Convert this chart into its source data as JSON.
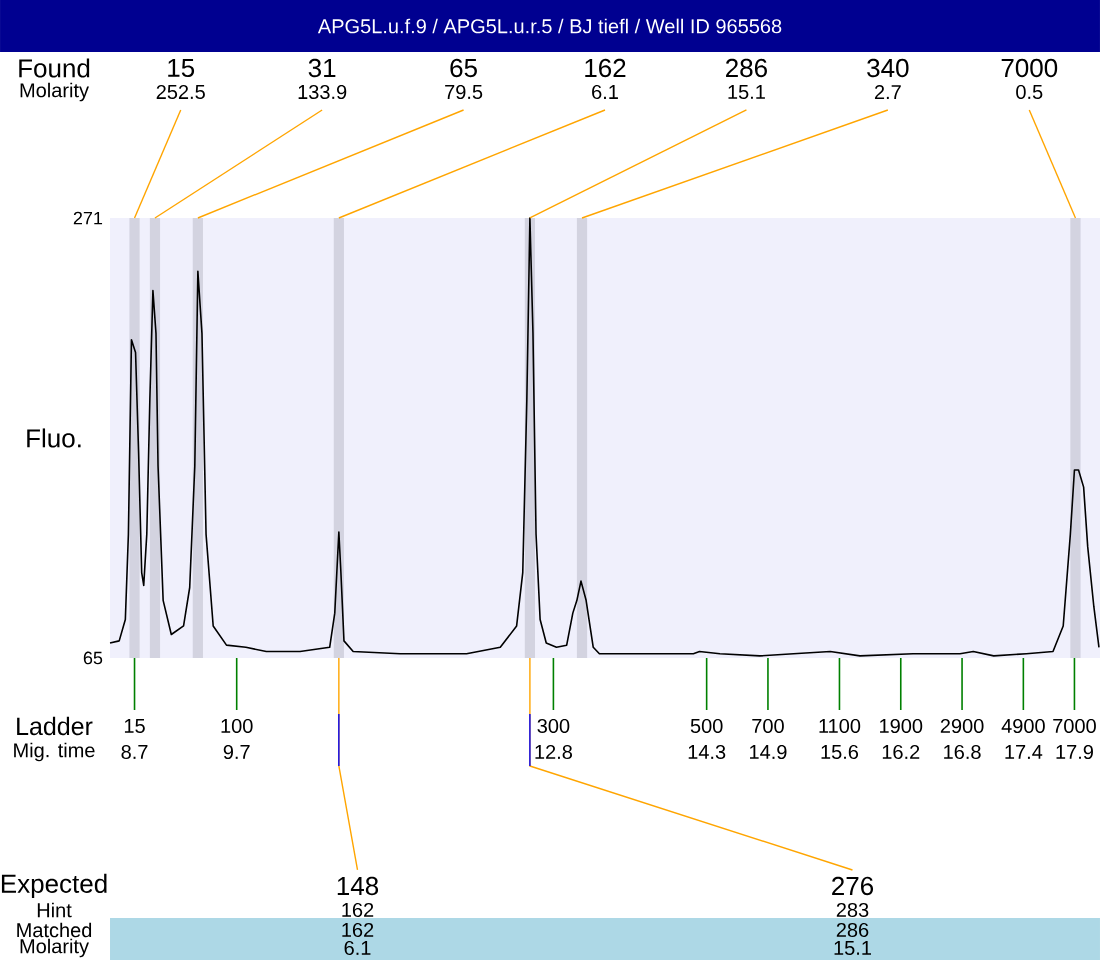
{
  "chart_data": {
    "type": "line",
    "title": "APG5L.u.f.9 / APG5L.u.r.5 / BJ tiefl / Well ID 965568",
    "xlabel": "Mig. time",
    "ylabel": "Fluo.",
    "x": [
      8.46,
      8.55,
      8.61,
      8.64,
      8.67,
      8.71,
      8.74,
      8.77,
      8.79,
      8.82,
      8.85,
      8.88,
      8.91,
      8.93,
      8.98,
      9.06,
      9.18,
      9.24,
      9.29,
      9.32,
      9.36,
      9.4,
      9.47,
      9.6,
      9.79,
      9.99,
      10.32,
      10.61,
      10.66,
      10.7,
      10.72,
      10.75,
      10.84,
      11.3,
      11.95,
      12.28,
      12.44,
      12.5,
      12.54,
      12.57,
      12.6,
      12.63,
      12.67,
      12.73,
      12.83,
      12.93,
      12.99,
      13.03,
      13.07,
      13.12,
      13.19,
      13.25,
      13.51,
      13.84,
      14.17,
      14.23,
      14.43,
      14.82,
      15.15,
      15.51,
      15.8,
      16.32,
      16.78,
      16.91,
      17.11,
      17.43,
      17.69,
      17.79,
      17.86,
      17.9,
      17.94,
      17.99,
      18.03,
      18.09,
      18.14
    ],
    "values": [
      72,
      73,
      83,
      123,
      214,
      208,
      161,
      105,
      99,
      123,
      186,
      237,
      217,
      155,
      92,
      76,
      80,
      98,
      155,
      246,
      217,
      123,
      80,
      71,
      70,
      68,
      68,
      70,
      86,
      124,
      105,
      73,
      68,
      67,
      67,
      70,
      80,
      105,
      186,
      271,
      217,
      123,
      83,
      72,
      70,
      71,
      86,
      92,
      101,
      92,
      70,
      67,
      67,
      67,
      67,
      68,
      67,
      66,
      67,
      68,
      66,
      67,
      67,
      68,
      66,
      67,
      68,
      80,
      123,
      153,
      153,
      145,
      117,
      89,
      70
    ],
    "color": "#000000",
    "xlim": [
      8.46,
      18.15
    ],
    "xticks": [
      8.7,
      9.7,
      12.8,
      14.3,
      14.9,
      15.6,
      16.2,
      16.8,
      17.4,
      17.9
    ],
    "ylim": [
      65,
      271
    ],
    "yticks": [
      65,
      271
    ],
    "bands": [
      {
        "axis": "x",
        "from": 8.65,
        "to": 8.75,
        "color": "#D3D3E0"
      },
      {
        "axis": "x",
        "from": 8.85,
        "to": 8.95,
        "color": "#D3D3E0"
      },
      {
        "axis": "x",
        "from": 9.27,
        "to": 9.37,
        "color": "#D3D3E0"
      },
      {
        "axis": "x",
        "from": 10.65,
        "to": 10.75,
        "color": "#D3D3E0"
      },
      {
        "axis": "x",
        "from": 12.52,
        "to": 12.62,
        "color": "#D3D3E0"
      },
      {
        "axis": "x",
        "from": 13.03,
        "to": 13.13,
        "color": "#D3D3E0"
      },
      {
        "axis": "x",
        "from": 17.86,
        "to": 17.96,
        "color": "#D3D3E0"
      }
    ],
    "annotations": [
      "Found",
      "Molarity",
      {
        "text": "15",
        "x": 8.7,
        "y": 271
      },
      "252.5",
      {
        "text": "31",
        "x": 8.9,
        "y": 271
      },
      "133.9",
      {
        "text": "65",
        "x": 9.32,
        "y": 271
      },
      "79.5",
      {
        "text": "162",
        "x": 10.7,
        "y": 271
      },
      "6.1",
      {
        "text": "286",
        "x": 12.57,
        "y": 271
      },
      "15.1",
      {
        "text": "340",
        "x": 13.08,
        "y": 271
      },
      "2.7",
      {
        "text": "7000",
        "x": 17.91,
        "y": 271
      },
      "0.5",
      "Ladder",
      "15",
      "100",
      "300",
      "500",
      "700",
      "1100",
      "1900",
      "2900",
      "4900",
      "7000",
      "Expected",
      "Hint",
      "Matched",
      "Molarity",
      {
        "text": "148",
        "x": 10.7,
        "y": 65
      },
      "162",
      "162",
      "6.1",
      {
        "text": "276",
        "x": 12.57,
        "y": 65
      },
      "283",
      "286",
      "15.1"
    ]
  }
}
